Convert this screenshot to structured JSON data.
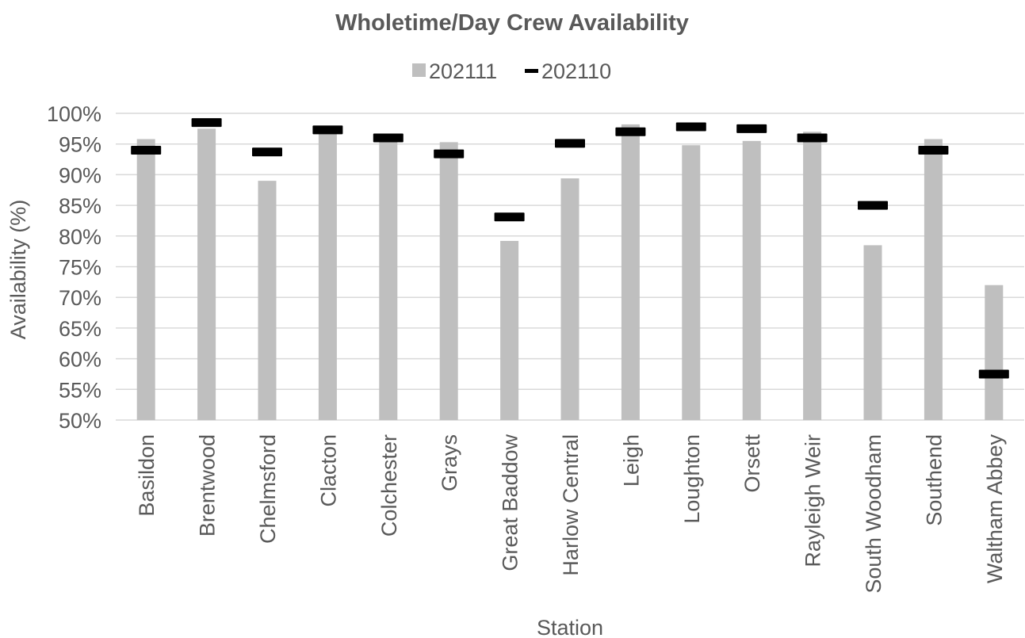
{
  "chart_data": {
    "type": "bar",
    "title": "Wholetime/Day Crew Availability",
    "xlabel": "Station",
    "ylabel": "Availability (%)",
    "ylim": [
      50,
      100
    ],
    "yticks": [
      "100%",
      "95%",
      "90%",
      "85%",
      "80%",
      "75%",
      "70%",
      "65%",
      "60%",
      "55%",
      "50%"
    ],
    "grid": true,
    "legend_position": "top",
    "categories": [
      "Basildon",
      "Brentwood",
      "Chelmsford",
      "Clacton",
      "Colchester",
      "Grays",
      "Great Baddow",
      "Harlow Central",
      "Leigh",
      "Loughton",
      "Orsett",
      "Rayleigh Weir",
      "South Woodham",
      "Southend",
      "Waltham Abbey"
    ],
    "series": [
      {
        "name": "202111",
        "kind": "bar",
        "color": "#bfbfbf",
        "values": [
          95.8,
          97.5,
          89.0,
          97.0,
          96.0,
          95.3,
          79.2,
          89.4,
          98.2,
          94.8,
          95.5,
          97.0,
          78.5,
          95.8,
          72.0
        ]
      },
      {
        "name": "202110",
        "kind": "marker",
        "color": "#000000",
        "values": [
          94.0,
          98.5,
          93.7,
          97.3,
          96.0,
          93.4,
          83.1,
          95.1,
          97.0,
          97.8,
          97.5,
          96.0,
          85.0,
          94.0,
          57.5
        ]
      }
    ]
  }
}
